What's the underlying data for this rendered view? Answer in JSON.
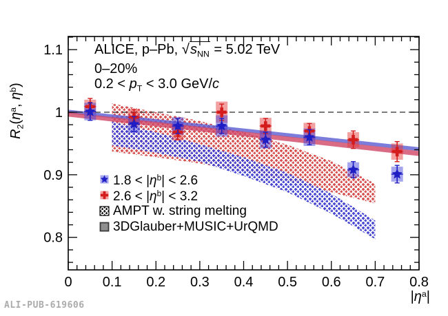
{
  "watermark": "ALI-PUB-619606",
  "annotations": {
    "line1_pre": "ALICE, p–Pb, ",
    "line1_sqrt": "√",
    "line1_s": "s",
    "line1_sub": "NN",
    "line1_post": " = 5.02 TeV",
    "line2": "0–20%",
    "line3_pre": "0.2 < ",
    "line3_p": "p",
    "line3_sub": "T",
    "line3_post": " < 3.0 GeV/",
    "line3_c": "c"
  },
  "axis_labels": {
    "y_R": "R",
    "y_sub": "2",
    "y_open": "(",
    "y_eta_a": "η",
    "y_sup_a": "a",
    "y_comma": ", ",
    "y_eta_b": "η",
    "y_sup_b": "b",
    "y_close": ")",
    "x_pre": "|",
    "x_eta": "η",
    "x_sup": "a",
    "x_post": "|"
  },
  "legend": {
    "row1_pre": "1.8 < |",
    "row1_eta": "η",
    "row1_sup": "b",
    "row1_post": "| < 2.6",
    "row2_pre": "2.6 < |",
    "row2_eta": "η",
    "row2_sup": "b",
    "row2_post": "| < 3.2",
    "row3": "AMPT w. string melting",
    "row4": "3DGlauber+MUSIC+UrQMD"
  },
  "colors": {
    "blue_marker": "#1e1ec4",
    "blue_box": "rgba(70,70,220,0.48)",
    "blue_hatch": "#4343d2",
    "red_marker": "#d41c1c",
    "red_box": "rgba(228,56,56,0.48)",
    "red_hatch": "#d64c4c",
    "solid_blue_band": "#5b5bd2",
    "solid_red_band": "#d04666",
    "gray_fill": "#8f8f8f",
    "gray_edge": "#3a3a3a",
    "dashed_line": "#2b2b2b"
  },
  "chart_data": {
    "type": "scatter",
    "title": "ALICE, p–Pb, √sNN = 5.02 TeV; 0–20%; 0.2 < pT < 3.0 GeV/c",
    "xlabel": "|ηa|",
    "ylabel": "R2(ηa, ηb)",
    "xlim": [
      0,
      0.8
    ],
    "ylim": [
      0.748,
      1.121
    ],
    "x_ticks": [
      0,
      0.1,
      0.2,
      0.3,
      0.4,
      0.5,
      0.6,
      0.7,
      0.8
    ],
    "x_tick_labels": [
      "0",
      "0.1",
      "0.2",
      "0.3",
      "0.4",
      "0.5",
      "0.6",
      "0.7",
      "0.8"
    ],
    "y_ticks": [
      0.8,
      0.9,
      1.0,
      1.1
    ],
    "y_tick_labels": [
      "0.8",
      "0.9",
      "1",
      "1.1"
    ],
    "minor_tick_step": 0.02,
    "reference_line_y": 1.0,
    "grid": false,
    "legend_position": "bottom-left",
    "legend_entries": [
      "1.8 < |ηb| < 2.6",
      "2.6 < |ηb| < 3.2",
      "AMPT w. string melting",
      "3DGlauber+MUSIC+UrQMD"
    ],
    "series": [
      {
        "name": "1.8 < |ηb| < 2.6",
        "marker": "star",
        "x": [
          0.05,
          0.15,
          0.25,
          0.35,
          0.45,
          0.55,
          0.65,
          0.75
        ],
        "y": [
          1.001,
          0.981,
          0.978,
          0.978,
          0.956,
          0.96,
          0.908,
          0.901
        ],
        "stat": [
          0.014,
          0.012,
          0.012,
          0.012,
          0.012,
          0.012,
          0.013,
          0.014
        ],
        "sys": [
          0.014,
          0.014,
          0.014,
          0.017,
          0.014,
          0.014,
          0.012,
          0.012
        ]
      },
      {
        "name": "2.6 < |ηb| < 3.2",
        "marker": "cross",
        "x": [
          0.05,
          0.15,
          0.25,
          0.35,
          0.45,
          0.55,
          0.65,
          0.75
        ],
        "y": [
          1.009,
          0.992,
          0.968,
          1.0,
          0.978,
          0.97,
          0.956,
          0.937
        ],
        "stat": [
          0.013,
          0.012,
          0.012,
          0.013,
          0.012,
          0.012,
          0.014,
          0.016
        ],
        "sys": [
          0.011,
          0.013,
          0.013,
          0.017,
          0.013,
          0.013,
          0.012,
          0.013
        ]
      }
    ],
    "bands": [
      {
        "name": "AMPT w. string melting (2.6 < |ηb| < 3.2)",
        "style": "hatch-red",
        "x": [
          0.1,
          0.2,
          0.3,
          0.4,
          0.5,
          0.6,
          0.7
        ],
        "top": [
          1.014,
          1.0,
          0.986,
          0.968,
          0.948,
          0.922,
          0.886
        ],
        "bottom": [
          0.937,
          0.928,
          0.918,
          0.905,
          0.89,
          0.872,
          0.854
        ]
      },
      {
        "name": "AMPT w. string melting (1.8 < |ηb| < 2.6)",
        "style": "hatch-blue",
        "x": [
          0.1,
          0.2,
          0.3,
          0.4,
          0.5,
          0.6,
          0.7
        ],
        "top": [
          0.985,
          0.968,
          0.949,
          0.928,
          0.903,
          0.87,
          0.827
        ],
        "bottom": [
          0.947,
          0.935,
          0.921,
          0.898,
          0.872,
          0.838,
          0.797
        ]
      },
      {
        "name": "3DGlauber+MUSIC+UrQMD (1.8 < |ηb| < 2.6)",
        "style": "solid-blue",
        "x": [
          0.0,
          0.8
        ],
        "top": [
          1.004,
          0.944
        ],
        "bottom": [
          0.998,
          0.938
        ]
      },
      {
        "name": "3DGlauber+MUSIC+UrQMD (2.6 < |ηb| < 3.2)",
        "style": "solid-red",
        "x": [
          0.0,
          0.8
        ],
        "top": [
          1.0,
          0.938
        ],
        "bottom": [
          0.993,
          0.93
        ]
      }
    ]
  }
}
